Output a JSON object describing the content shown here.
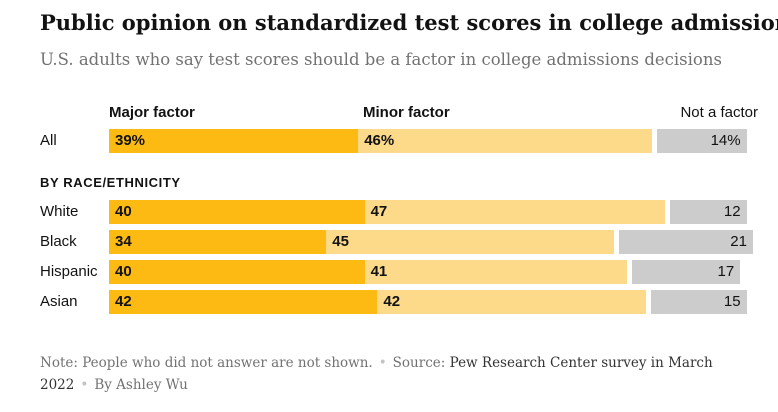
{
  "header": {
    "title": "Public opinion on standardized test scores in college admissions",
    "subtitle": "U.S. adults who say test scores should be a factor in college admissions decisions"
  },
  "legend": {
    "major": "Major factor",
    "minor": "Minor factor",
    "none": "Not a factor"
  },
  "section_label": "BY RACE/ETHNICITY",
  "footer": {
    "note": "Note: People who did not answer are not shown.",
    "source_label": "Source:",
    "source_text": "Pew Research Center survey in March 2022",
    "byline": "By Ashley Wu"
  },
  "colors": {
    "major": "#fdba13",
    "minor": "#fdd98a",
    "none": "#cccccc"
  },
  "chart_data": {
    "type": "bar",
    "stacked": true,
    "orientation": "horizontal",
    "categories": [
      "All",
      "White",
      "Black",
      "Hispanic",
      "Asian"
    ],
    "series": [
      {
        "name": "Major factor",
        "values": [
          39,
          40,
          34,
          40,
          42
        ]
      },
      {
        "name": "Minor factor",
        "values": [
          46,
          47,
          45,
          41,
          42
        ]
      },
      {
        "name": "Not a factor",
        "values": [
          14,
          12,
          21,
          17,
          15
        ]
      }
    ],
    "value_labels": [
      [
        "39%",
        "46%",
        "14%"
      ],
      [
        "40",
        "47",
        "12"
      ],
      [
        "34",
        "45",
        "21"
      ],
      [
        "40",
        "41",
        "17"
      ],
      [
        "42",
        "42",
        "15"
      ]
    ],
    "xlim": [
      0,
      100
    ],
    "unit": "%"
  }
}
